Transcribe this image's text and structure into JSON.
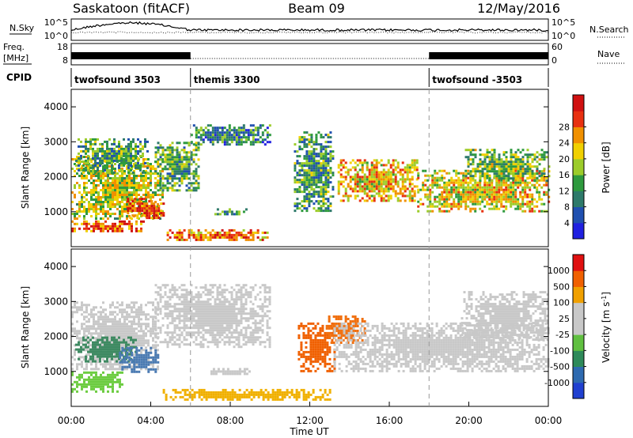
{
  "header": {
    "station": "Saskatoon (fitACF)",
    "beam": "Beam 09",
    "date": "12/May/2016"
  },
  "strip": {
    "nsky_label": "N.Sky",
    "nsearch_label": "N.Search",
    "count_ticks_left": [
      "10^5",
      "10^0"
    ],
    "count_ticks_right": [
      "10^5",
      "10^0"
    ],
    "freq_label_line1": "Freq.",
    "freq_label_line2": "[MHz]",
    "freq_ticks": [
      "18",
      "8"
    ],
    "nave_label": "Nave",
    "nave_ticks": [
      "60",
      "0"
    ],
    "cpid_label": "CPID",
    "cpid_segments": [
      {
        "label": "twofsound 3503",
        "start_hour": 0,
        "end_hour": 6
      },
      {
        "label": "themis 3300",
        "start_hour": 6,
        "end_hour": 18
      },
      {
        "label": "twofsound -3503",
        "start_hour": 18,
        "end_hour": 24
      }
    ]
  },
  "chart_data": [
    {
      "type": "heatmap",
      "panel": "power",
      "ylabel": "Slant Range [km]",
      "xlim": [
        0,
        24
      ],
      "ylim": [
        0,
        4500
      ],
      "y_ticks": [
        1000,
        2000,
        3000,
        4000
      ],
      "colorbar_label": "Power [dB]",
      "colorbar_ticks": [
        "4",
        "8",
        "12",
        "16",
        "20",
        "24",
        "28"
      ],
      "colorbar_colors": [
        "#2020e0",
        "#2050b0",
        "#2e7a6a",
        "#2e9a3e",
        "#9ccc2a",
        "#f0d000",
        "#f09000",
        "#e83010",
        "#d01010"
      ],
      "echo_regions": [
        {
          "t0": 0.0,
          "t1": 4.6,
          "r0": 800,
          "r1": 2600,
          "level": 0.55
        },
        {
          "t0": 0.2,
          "t1": 3.8,
          "r0": 2100,
          "r1": 3100,
          "level": 0.35
        },
        {
          "t0": 2.8,
          "t1": 4.6,
          "r0": 800,
          "r1": 1400,
          "level": 0.85
        },
        {
          "t0": 0.0,
          "t1": 3.6,
          "r0": 450,
          "r1": 750,
          "level": 0.8
        },
        {
          "t0": 4.2,
          "t1": 6.4,
          "r0": 1600,
          "r1": 3000,
          "level": 0.4
        },
        {
          "t0": 6.0,
          "t1": 10.0,
          "r0": 2900,
          "r1": 3500,
          "level": 0.3
        },
        {
          "t0": 7.2,
          "t1": 8.8,
          "r0": 900,
          "r1": 1100,
          "level": 0.35
        },
        {
          "t0": 11.2,
          "t1": 13.2,
          "r0": 1000,
          "r1": 3300,
          "level": 0.35
        },
        {
          "t0": 13.4,
          "t1": 17.4,
          "r0": 1300,
          "r1": 2500,
          "level": 0.65
        },
        {
          "t0": 17.4,
          "t1": 24.0,
          "r0": 1000,
          "r1": 2200,
          "level": 0.6
        },
        {
          "t0": 19.8,
          "t1": 24.0,
          "r0": 1900,
          "r1": 2800,
          "level": 0.45
        },
        {
          "t0": 4.8,
          "t1": 10.0,
          "r0": 200,
          "r1": 500,
          "level": 0.75
        }
      ]
    },
    {
      "type": "heatmap",
      "panel": "velocity",
      "xlabel": "Time UT",
      "ylabel": "Slant Range [km]",
      "xlim": [
        0,
        24
      ],
      "ylim": [
        0,
        4500
      ],
      "x_ticks": [
        "00:00",
        "04:00",
        "08:00",
        "12:00",
        "16:00",
        "20:00",
        "00:00"
      ],
      "y_ticks": [
        1000,
        2000,
        3000,
        4000
      ],
      "colorbar_label": "Velocity [m s",
      "colorbar_label_sup": "-1",
      "colorbar_label_end": "]",
      "colorbar_ticks": [
        "1000",
        "500",
        "100",
        "25",
        "-25",
        "-100",
        "-500",
        "-1000"
      ],
      "colorbar_colors": [
        "#2040d0",
        "#2e6ab0",
        "#2e8a5a",
        "#60c040",
        "#c8c8c8",
        "#c8c8c8",
        "#f0a000",
        "#f06000",
        "#e01010"
      ],
      "echo_regions": [
        {
          "t0": 0.0,
          "t1": 4.4,
          "r0": 1100,
          "r1": 3000,
          "color": "#c8c8c8"
        },
        {
          "t0": 0.2,
          "t1": 3.2,
          "r0": 1300,
          "r1": 2000,
          "color": "#3e8a62"
        },
        {
          "t0": 2.4,
          "t1": 4.4,
          "r0": 1000,
          "r1": 1700,
          "color": "#4a7ab2"
        },
        {
          "t0": 0.0,
          "t1": 2.6,
          "r0": 450,
          "r1": 1000,
          "color": "#6ccc40"
        },
        {
          "t0": 4.2,
          "t1": 10.0,
          "r0": 1700,
          "r1": 3500,
          "color": "#c8c8c8"
        },
        {
          "t0": 11.4,
          "t1": 13.2,
          "r0": 1000,
          "r1": 2400,
          "color": "#f06000"
        },
        {
          "t0": 12.8,
          "t1": 14.8,
          "r0": 1800,
          "r1": 2600,
          "color": "#f07010"
        },
        {
          "t0": 13.2,
          "t1": 24.0,
          "r0": 1000,
          "r1": 2400,
          "color": "#c8c8c8"
        },
        {
          "t0": 19.6,
          "t1": 24.0,
          "r0": 1900,
          "r1": 3300,
          "color": "#c8c8c8"
        },
        {
          "t0": 4.6,
          "t1": 13.0,
          "r0": 200,
          "r1": 500,
          "color": "#f0b000"
        },
        {
          "t0": 7.0,
          "t1": 9.0,
          "r0": 900,
          "r1": 1100,
          "color": "#c8c8c8"
        }
      ]
    }
  ]
}
